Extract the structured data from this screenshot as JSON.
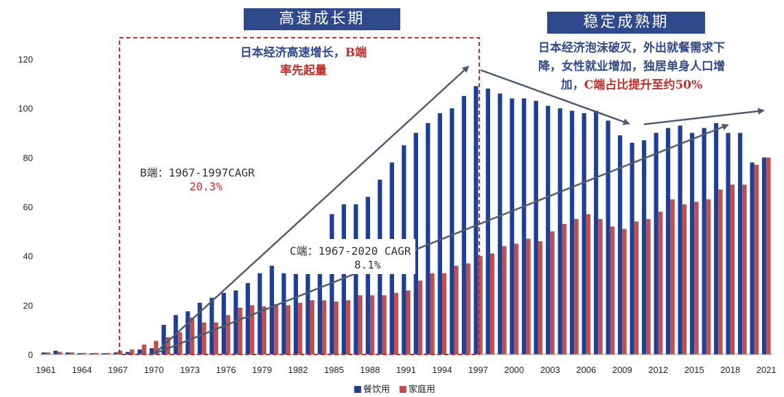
{
  "phases": {
    "high_growth": "高速成长期",
    "stable": "稳定成熟期"
  },
  "notes": {
    "left_line1_blue": "日本经济高速增长，",
    "left_line1_red": "B端",
    "left_line2": "率先起量",
    "right_line1": "日本经济泡沫破灭，外出就餐需求下",
    "right_line2": "降，女性就业增加，独居单身人口增",
    "right_line3_blue": "加，",
    "right_line3_red": "C端占比提升至约50%"
  },
  "cagr_b": {
    "label": "B端：1967-1997CAGR",
    "value": "20.3%"
  },
  "cagr_c": {
    "label": "C端：1967-2020 CAGR",
    "value": "8.1%"
  },
  "colors": {
    "series_b": "#1f3f94",
    "series_c": "#c0504d",
    "arrow": "#4f5b6e",
    "phase_bg": "#2f4a8c",
    "highlight_box": "#c0302b"
  },
  "chart_data": {
    "type": "bar",
    "ylim": [
      0,
      120
    ],
    "yticks": [
      0,
      20,
      40,
      60,
      80,
      100,
      120
    ],
    "x": [
      1961,
      1962,
      1963,
      1964,
      1965,
      1966,
      1967,
      1968,
      1969,
      1970,
      1971,
      1972,
      1973,
      1974,
      1975,
      1976,
      1977,
      1978,
      1979,
      1980,
      1981,
      1982,
      1983,
      1984,
      1985,
      1986,
      1987,
      1988,
      1989,
      1990,
      1991,
      1992,
      1993,
      1994,
      1995,
      1996,
      1997,
      1998,
      1999,
      2000,
      2001,
      2002,
      2003,
      2004,
      2005,
      2006,
      2007,
      2008,
      2009,
      2010,
      2011,
      2012,
      2013,
      2014,
      2015,
      2016,
      2017,
      2018,
      2019,
      2020,
      2021
    ],
    "xtick_labels": [
      "1961",
      "1964",
      "1967",
      "1970",
      "1973",
      "1976",
      "1979",
      "1982",
      "1985",
      "1988",
      "1991",
      "1994",
      "1997",
      "2000",
      "2003",
      "2006",
      "2009",
      "2012",
      "2015",
      "2018",
      "2021"
    ],
    "series": [
      {
        "name": "餐饮用",
        "values": [
          0.8,
          1.5,
          0.8,
          0.5,
          0.5,
          0.5,
          0.8,
          1.0,
          2.0,
          2.5,
          12,
          16,
          17.5,
          21,
          23,
          25,
          26,
          29,
          33,
          36,
          33,
          33,
          33,
          33,
          57,
          61,
          61,
          64,
          71,
          78,
          85,
          90,
          94,
          98,
          100,
          105,
          109,
          108,
          106,
          104,
          104,
          103,
          101,
          100,
          99,
          98,
          99,
          95,
          89,
          86,
          87,
          90,
          92,
          93,
          90,
          92,
          94,
          90,
          90,
          78,
          80
        ]
      },
      {
        "name": "家庭用",
        "values": [
          0.8,
          1.0,
          0.8,
          0.6,
          0.6,
          0.6,
          1.5,
          2.0,
          4.0,
          5.5,
          7,
          9,
          15,
          13,
          13,
          16,
          19,
          20,
          19.5,
          20.5,
          20,
          21,
          22,
          22,
          21.5,
          22,
          24,
          24,
          24,
          25,
          26,
          30,
          33,
          33,
          36,
          37,
          40,
          41,
          44,
          45,
          47,
          46,
          50,
          53,
          55,
          57,
          55,
          52,
          51,
          54,
          55,
          58,
          63,
          61,
          62,
          63,
          67,
          69,
          69,
          77,
          80
        ]
      }
    ]
  }
}
